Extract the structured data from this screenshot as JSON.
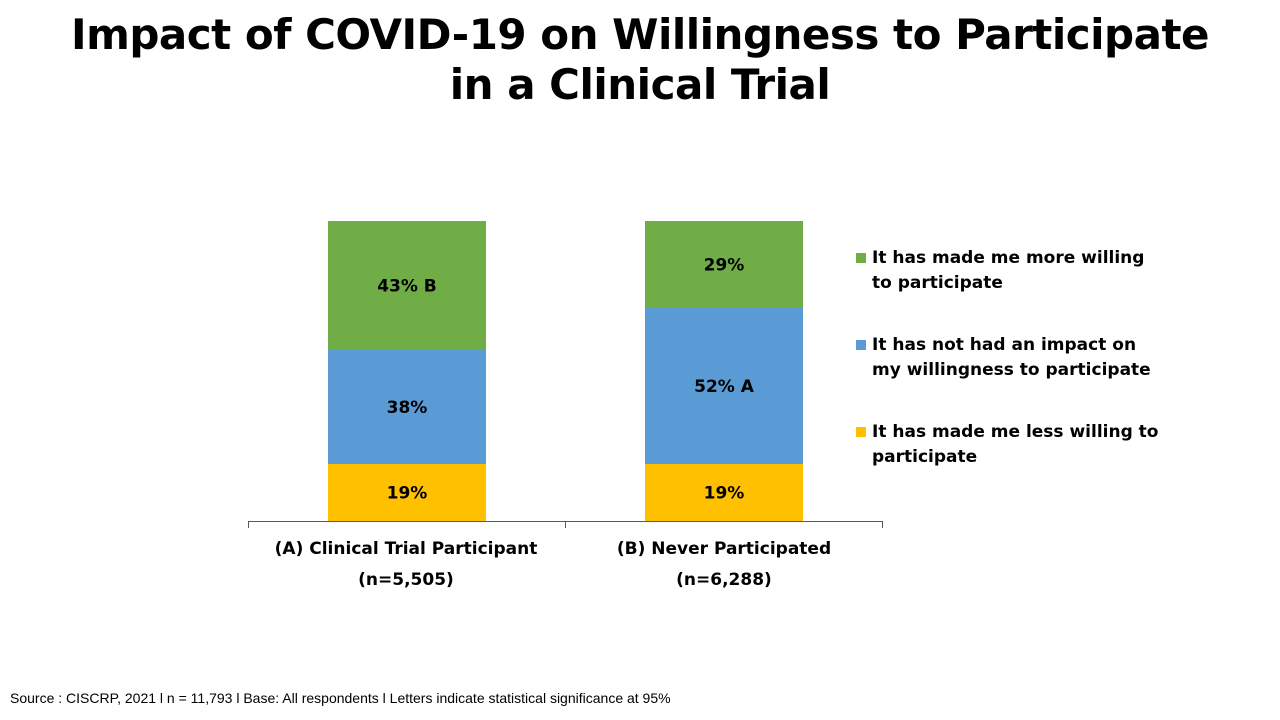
{
  "title_lines": [
    "Impact of COVID-19 on Willingness to Participate",
    "in a Clinical Trial"
  ],
  "chart_data": {
    "type": "bar",
    "stacked": true,
    "categories": [
      {
        "label": "(A) Clinical Trial Participant",
        "sublabel": "(n=5,505)"
      },
      {
        "label": "(B)  Never Participated",
        "sublabel": "(n=6,288)"
      }
    ],
    "series": [
      {
        "name": "It has made me less willing to participate",
        "color": "#FFC000",
        "values": [
          19,
          19
        ],
        "labels": [
          "19%",
          "19%"
        ]
      },
      {
        "name": "It has not had an impact on my willingness to participate",
        "color": "#5B9BD5",
        "values": [
          38,
          52
        ],
        "labels": [
          "38%",
          "52% A"
        ]
      },
      {
        "name": "It has made me more willing to participate",
        "color": "#70AD47",
        "values": [
          43,
          29
        ],
        "labels": [
          "43% B",
          "29%"
        ]
      }
    ],
    "ylim": [
      0,
      100
    ],
    "grid": false,
    "legend_position": "right"
  },
  "legend": [
    {
      "label_lines": [
        "It has made me more willing",
        "to participate"
      ],
      "color": "#70AD47"
    },
    {
      "label_lines": [
        "It has not had an impact on",
        "my willingness to participate"
      ],
      "color": "#5B9BD5"
    },
    {
      "label_lines": [
        "It has made me less willing to",
        "participate"
      ],
      "color": "#FFC000"
    }
  ],
  "source": "Source : CISCRP, 2021 l n = 11,793 l  Base: All respondents l Letters indicate statistical significance at 95%"
}
